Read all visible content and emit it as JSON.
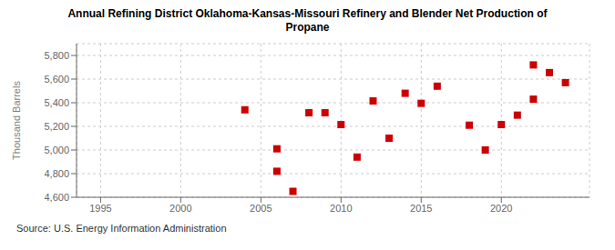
{
  "chart_data": {
    "type": "scatter",
    "title": "Annual Refining District Oklahoma-Kansas-Missouri Refinery and Blender Net Production of\nPropane",
    "y_label": "Thousand Barrels",
    "annotations": [
      "Source: U.S. Energy Information Administration"
    ],
    "x": [
      2004,
      2006,
      2006,
      2007,
      2008,
      2009,
      2010,
      2011,
      2012,
      2013,
      2014,
      2015,
      2016,
      2018,
      2019,
      2020,
      2021,
      2022,
      2022,
      2023,
      2024
    ],
    "values": [
      5340,
      5010,
      4820,
      4650,
      5315,
      5315,
      5215,
      4940,
      5415,
      5100,
      5480,
      5395,
      5540,
      5210,
      5000,
      5215,
      5295,
      5430,
      5720,
      5655,
      5570
    ],
    "color": "#cc0000",
    "marker": "square",
    "xlim": [
      1993.5,
      2025.5
    ],
    "ylim": [
      4600,
      5900
    ],
    "xticks": [
      1995,
      2000,
      2005,
      2010,
      2015,
      2020
    ],
    "yticks": [
      {
        "value": 4600,
        "label": "4,600"
      },
      {
        "value": 4800,
        "label": "4,800"
      },
      {
        "value": 5000,
        "label": "5,000"
      },
      {
        "value": 5200,
        "label": "5,200"
      },
      {
        "value": 5400,
        "label": "5,400"
      },
      {
        "value": 5600,
        "label": "5,600"
      },
      {
        "value": 5800,
        "label": "5,800"
      }
    ],
    "grid": true
  }
}
